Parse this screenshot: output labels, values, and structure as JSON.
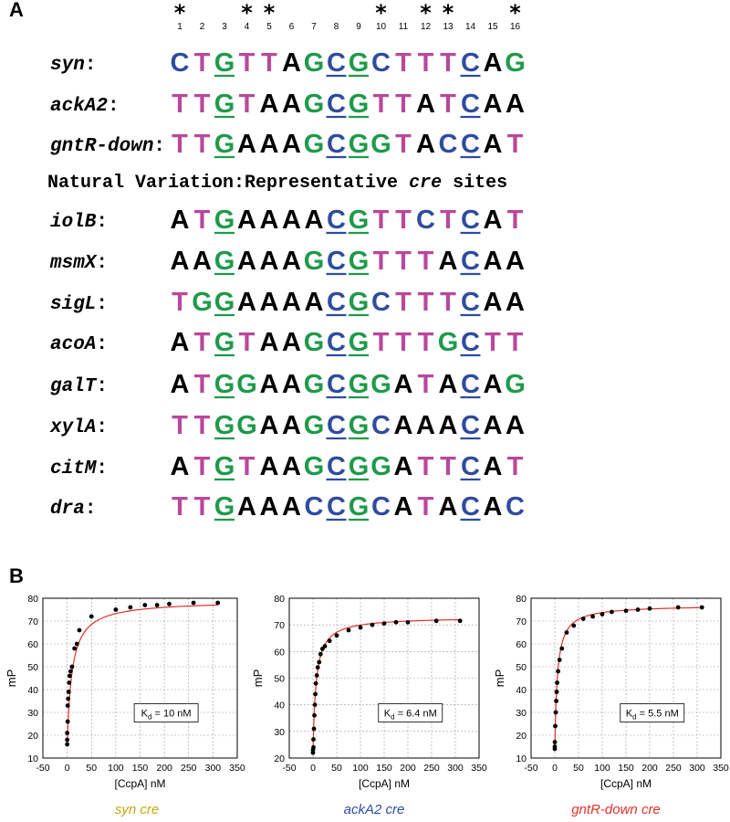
{
  "panel_a": {
    "letter": "A",
    "star_glyph": "*",
    "starred_positions": [
      1,
      4,
      5,
      10,
      12,
      13,
      16
    ],
    "positions": [
      "1",
      "2",
      "3",
      "4",
      "5",
      "6",
      "7",
      "8",
      "9",
      "10",
      "11",
      "12",
      "13",
      "14",
      "15",
      "16"
    ],
    "colors": {
      "T": "#b9489b",
      "G": "#1e9a4a",
      "C": "#2e4c9e",
      "A": "#000000"
    },
    "underline_colors": {
      "G": "#1e9a4a",
      "C": "#2e4c9e"
    },
    "groups": [
      {
        "sites": [
          {
            "name": "syn",
            "sequence": "CTGTTAGCGCTTTCAG",
            "underlined": [
              3,
              8,
              9,
              14
            ]
          },
          {
            "name": "ackA2",
            "sequence": "TTGTAAGCGTTATCAA",
            "underlined": [
              3,
              8,
              9,
              14
            ]
          },
          {
            "name": "gntR-down",
            "sequence": "TTGAAAGCGGTACCAT",
            "underlined": [
              3,
              8,
              9,
              14
            ]
          }
        ]
      },
      {
        "heading_pre": "Natural Variation:Representative ",
        "heading_em": "cre",
        "heading_post": " sites",
        "sites": [
          {
            "name": "iolB",
            "sequence": "ATGAAAACGTTCTCAT",
            "underlined": [
              3,
              8,
              9,
              14
            ]
          },
          {
            "name": "msmX",
            "sequence": "AAGAAAGCGTTTACAA",
            "underlined": [
              3,
              8,
              9,
              14
            ]
          },
          {
            "name": "sigL",
            "sequence": "TGGAAAACGCTTTCAA",
            "underlined": [
              3,
              8,
              9,
              14
            ]
          },
          {
            "name": "acoA",
            "sequence": "ATGTAAGCGTTTGCTT",
            "underlined": [
              3,
              8,
              9,
              14
            ]
          },
          {
            "name": "galT",
            "sequence": "ATGGAAGCGGATACAG",
            "underlined": [
              3,
              8,
              9,
              14
            ]
          },
          {
            "name": "xylA",
            "sequence": "TTGGAAGCGCAAACAA",
            "underlined": [
              3,
              8,
              9,
              14
            ]
          },
          {
            "name": "citM",
            "sequence": "ATGTAAGCGGATTCAT",
            "underlined": [
              3,
              8,
              9,
              14
            ]
          },
          {
            "name": "dra",
            "sequence": "TTGAAACCGCATACAC",
            "underlined": [
              3,
              8,
              9,
              14
            ]
          }
        ]
      }
    ]
  },
  "panel_b": {
    "letter": "B"
  },
  "chart_data": [
    {
      "type": "scatter",
      "xlabel": "[CcpA] nM",
      "ylabel": "mP",
      "xlim": [
        -50,
        350
      ],
      "ylim": [
        10,
        80
      ],
      "xticks": [
        -50,
        0,
        50,
        100,
        150,
        200,
        250,
        300,
        350
      ],
      "yticks": [
        10,
        20,
        30,
        40,
        50,
        60,
        70,
        80
      ],
      "grid": true,
      "kd_label": "K",
      "kd_sub": "d",
      "kd_value": " = 10 nM",
      "kd": 10,
      "bmin": 16,
      "bmax": 79,
      "caption_pre": "syn ",
      "caption_em": "cre",
      "caption_color": "#c8a70f",
      "series": [
        {
          "x": [
            0,
            0,
            0,
            1,
            1,
            2,
            3,
            4,
            5,
            7,
            10,
            15,
            20,
            25,
            50,
            100,
            130,
            160,
            185,
            210,
            260,
            310
          ],
          "y": [
            16,
            18,
            21,
            26,
            33,
            36,
            39,
            43,
            46,
            48,
            50,
            58,
            60,
            66,
            72,
            75,
            76,
            77,
            77,
            77.5,
            78,
            78
          ]
        }
      ]
    },
    {
      "type": "scatter",
      "xlabel": "[CcpA] nM",
      "ylabel": "mP",
      "xlim": [
        -50,
        350
      ],
      "ylim": [
        20,
        80
      ],
      "xticks": [
        -50,
        0,
        50,
        100,
        150,
        200,
        250,
        300,
        350
      ],
      "yticks": [
        20,
        30,
        40,
        50,
        60,
        70,
        80
      ],
      "grid": true,
      "kd_label": "K",
      "kd_sub": "d",
      "kd_value": " = 6.4 nM",
      "kd": 6.4,
      "bmin": 22,
      "bmax": 73,
      "caption_pre": "ackA2 ",
      "caption_em": "cre",
      "caption_color": "#2e4c9e",
      "series": [
        {
          "x": [
            0,
            0,
            1,
            1,
            2,
            3,
            4,
            5,
            6,
            8,
            10,
            13,
            16,
            20,
            25,
            35,
            50,
            75,
            100,
            125,
            150,
            175,
            200,
            260,
            310
          ],
          "y": [
            22,
            23,
            24,
            27,
            31,
            36,
            40,
            44,
            48,
            51,
            54,
            56,
            59,
            61,
            62,
            64,
            66,
            68,
            69,
            70,
            70.5,
            71,
            71,
            71.5,
            71.5
          ]
        }
      ]
    },
    {
      "type": "scatter",
      "xlabel": "[CcpA] nM",
      "ylabel": "mP",
      "xlim": [
        -50,
        350
      ],
      "ylim": [
        10,
        80
      ],
      "xticks": [
        -50,
        0,
        50,
        100,
        150,
        200,
        250,
        300,
        350
      ],
      "yticks": [
        10,
        20,
        30,
        40,
        50,
        60,
        70,
        80
      ],
      "grid": true,
      "kd_label": "K",
      "kd_sub": "d",
      "kd_value": " = 5.5 nM",
      "kd": 5.5,
      "bmin": 14,
      "bmax": 77,
      "caption_pre": "gntR-down ",
      "caption_em": "cre",
      "caption_color": "#e0302a",
      "series": [
        {
          "x": [
            0,
            0,
            0,
            1,
            2,
            3,
            4,
            5,
            7,
            10,
            15,
            25,
            40,
            60,
            80,
            100,
            120,
            150,
            175,
            200,
            260,
            310
          ],
          "y": [
            14,
            15,
            17,
            24,
            30,
            35,
            39,
            43,
            48,
            53,
            58,
            65,
            68,
            71,
            72,
            73,
            74,
            74.5,
            75,
            75.5,
            76,
            76
          ]
        }
      ]
    }
  ]
}
